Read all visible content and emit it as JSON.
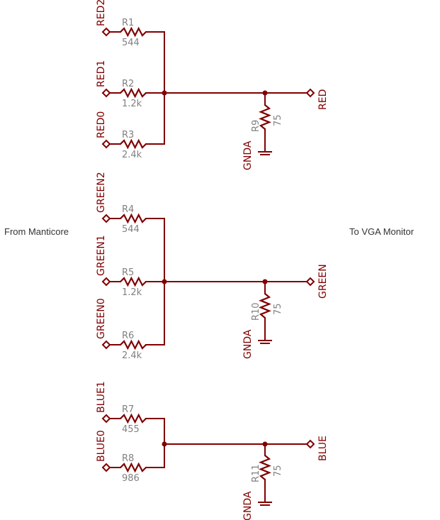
{
  "left_caption": "From Manticore",
  "right_caption": "To VGA Monitor",
  "channels": [
    {
      "output": "RED",
      "inputs": [
        {
          "label": "RED2",
          "resistor": "R1",
          "value": "544"
        },
        {
          "label": "RED1",
          "resistor": "R2",
          "value": "1.2k"
        },
        {
          "label": "RED0",
          "resistor": "R3",
          "value": "2.4k"
        }
      ],
      "termination": {
        "resistor": "R9",
        "value": "75",
        "ground": "GNDA"
      }
    },
    {
      "output": "GREEN",
      "inputs": [
        {
          "label": "GREEN2",
          "resistor": "R4",
          "value": "544"
        },
        {
          "label": "GREEN1",
          "resistor": "R5",
          "value": "1.2k"
        },
        {
          "label": "GREEN0",
          "resistor": "R6",
          "value": "2.4k"
        }
      ],
      "termination": {
        "resistor": "R10",
        "value": "75",
        "ground": "GNDA"
      }
    },
    {
      "output": "BLUE",
      "inputs": [
        {
          "label": "BLUE1",
          "resistor": "R7",
          "value": "455"
        },
        {
          "label": "BLUE0",
          "resistor": "R8",
          "value": "986"
        }
      ],
      "termination": {
        "resistor": "R11",
        "value": "75",
        "ground": "GNDA"
      }
    }
  ]
}
